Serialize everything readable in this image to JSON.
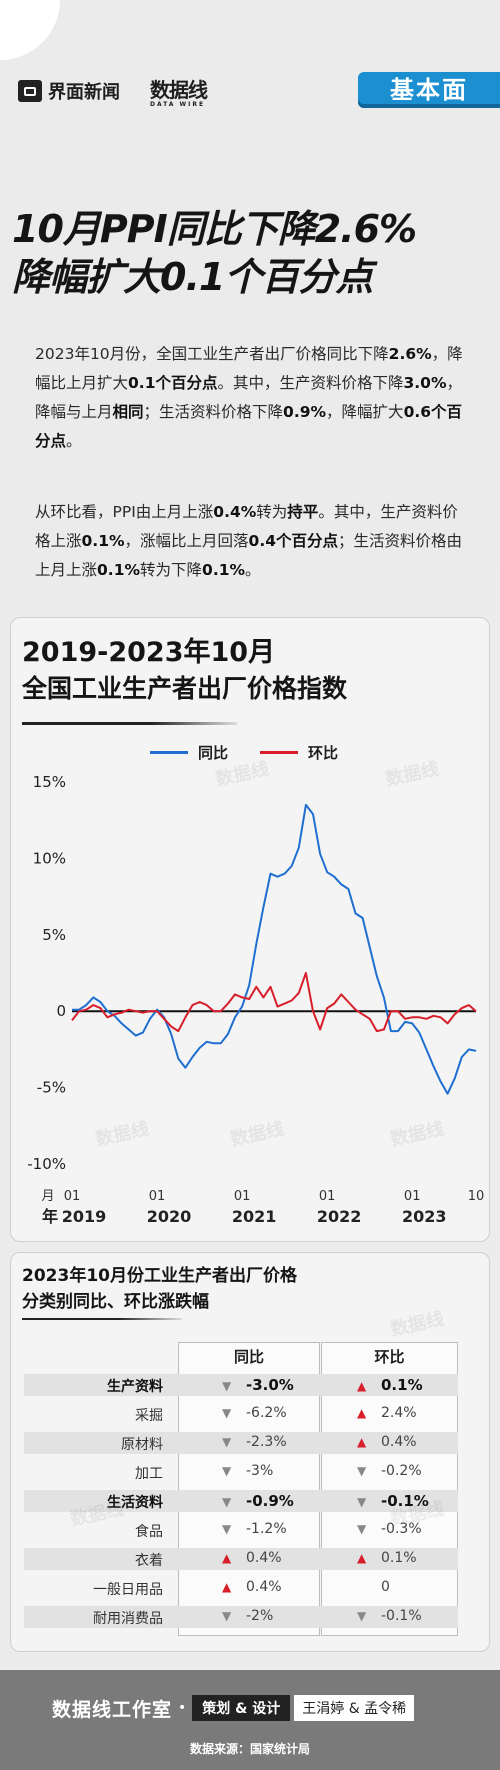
{
  "header": {
    "brand_name": "界面新闻",
    "brand2": "数据线",
    "brand2_sub": "DATA WIRE",
    "tag": "基本面"
  },
  "headline": {
    "line1": "10月PPI同比下降2.6%",
    "line2": "降幅扩大0.1个百分点"
  },
  "paragraphs": {
    "p1": [
      {
        "t": "2023年10月份，全国工业生产者出厂价格同比下降",
        "b": false
      },
      {
        "t": "2.6%",
        "b": true
      },
      {
        "t": "，降幅比上月扩大",
        "b": false
      },
      {
        "t": "0.1个百分点",
        "b": true
      },
      {
        "t": "。其中，生产资料价格下降",
        "b": false
      },
      {
        "t": "3.0%",
        "b": true
      },
      {
        "t": "，降幅与上月",
        "b": false
      },
      {
        "t": "相同",
        "b": true
      },
      {
        "t": "；生活资料价格下降",
        "b": false
      },
      {
        "t": "0.9%",
        "b": true
      },
      {
        "t": "，降幅扩大",
        "b": false
      },
      {
        "t": "0.6个百分点",
        "b": true
      },
      {
        "t": "。",
        "b": false
      }
    ],
    "p2": [
      {
        "t": "从环比看，PPI由上月上涨",
        "b": false
      },
      {
        "t": "0.4%",
        "b": true
      },
      {
        "t": "转为",
        "b": false
      },
      {
        "t": "持平",
        "b": true
      },
      {
        "t": "。其中，生产资料价格上涨",
        "b": false
      },
      {
        "t": "0.1%",
        "b": true
      },
      {
        "t": "，涨幅比上月回落",
        "b": false
      },
      {
        "t": "0.4个百分点",
        "b": true
      },
      {
        "t": "；生活资料价格由上月上涨",
        "b": false
      },
      {
        "t": "0.1%",
        "b": true
      },
      {
        "t": "转为下降",
        "b": false
      },
      {
        "t": "0.1%",
        "b": true
      },
      {
        "t": "。",
        "b": false
      }
    ]
  },
  "chart_data": {
    "type": "line",
    "title_line1": "2019-2023年10月",
    "title_line2": "全国工业生产者出厂价格指数",
    "ylim": [
      -10,
      15
    ],
    "yticks": [
      -10,
      -5,
      0,
      5,
      10,
      15
    ],
    "ytick_labels": [
      "-10%",
      "-5%",
      "0",
      "5%",
      "10%",
      "15%"
    ],
    "x_month_label": "月",
    "x_year_label": "年",
    "x_ticks": [
      {
        "month": "01",
        "year": "2019",
        "index": 0
      },
      {
        "month": "01",
        "year": "2020",
        "index": 12
      },
      {
        "month": "01",
        "year": "2021",
        "index": 24
      },
      {
        "month": "01",
        "year": "2022",
        "index": 36
      },
      {
        "month": "01",
        "year": "2023",
        "index": 48
      },
      {
        "month": "10",
        "year": "",
        "index": 57
      }
    ],
    "series": [
      {
        "name": "同比",
        "color": "#1f6fd1",
        "values": [
          0.1,
          0.1,
          0.4,
          0.9,
          0.6,
          0.0,
          -0.3,
          -0.8,
          -1.2,
          -1.6,
          -1.4,
          -0.5,
          0.1,
          -0.4,
          -1.5,
          -3.1,
          -3.7,
          -3.0,
          -2.4,
          -2.0,
          -2.1,
          -2.1,
          -1.5,
          -0.4,
          0.3,
          1.7,
          4.4,
          6.8,
          9.0,
          8.8,
          9.0,
          9.5,
          10.7,
          13.5,
          12.9,
          10.3,
          9.1,
          8.8,
          8.3,
          8.0,
          6.4,
          6.1,
          4.2,
          2.3,
          0.9,
          -1.3,
          -1.3,
          -0.7,
          -0.8,
          -1.4,
          -2.5,
          -3.6,
          -4.6,
          -5.4,
          -4.4,
          -3.0,
          -2.5,
          -2.6
        ]
      },
      {
        "name": "环比",
        "color": "#d81e2a",
        "values": [
          -0.6,
          0.0,
          0.1,
          0.4,
          0.2,
          -0.4,
          -0.2,
          -0.1,
          0.1,
          0.0,
          -0.1,
          0.0,
          0.0,
          -0.5,
          -1.0,
          -1.3,
          -0.4,
          0.4,
          0.6,
          0.4,
          0.0,
          0.0,
          0.5,
          1.1,
          0.9,
          0.8,
          1.6,
          0.9,
          1.6,
          0.3,
          0.5,
          0.7,
          1.2,
          2.5,
          0.0,
          -1.2,
          0.2,
          0.5,
          1.1,
          0.6,
          0.1,
          -0.2,
          -0.5,
          -1.3,
          -1.2,
          0.0,
          0.0,
          -0.5,
          -0.4,
          -0.4,
          -0.5,
          -0.3,
          -0.4,
          -0.8,
          -0.2,
          0.2,
          0.4,
          0.0
        ]
      }
    ]
  },
  "table": {
    "title_line1": "2023年10月份工业生产者出厂价格",
    "title_line2": "分类别同比、环比涨跌幅",
    "col1": "同比",
    "col2": "环比",
    "rows": [
      {
        "name": "生产资料",
        "yoy": "-3.0%",
        "yoy_dir": "down",
        "mom": "0.1%",
        "mom_dir": "up",
        "major": true
      },
      {
        "name": "采掘",
        "yoy": "-6.2%",
        "yoy_dir": "down",
        "mom": "2.4%",
        "mom_dir": "up",
        "major": false
      },
      {
        "name": "原材料",
        "yoy": "-2.3%",
        "yoy_dir": "down",
        "mom": "0.4%",
        "mom_dir": "up",
        "major": false
      },
      {
        "name": "加工",
        "yoy": "-3%",
        "yoy_dir": "down",
        "mom": "-0.2%",
        "mom_dir": "down",
        "major": false
      },
      {
        "name": "生活资料",
        "yoy": "-0.9%",
        "yoy_dir": "down",
        "mom": "-0.1%",
        "mom_dir": "down",
        "major": true
      },
      {
        "name": "食品",
        "yoy": "-1.2%",
        "yoy_dir": "down",
        "mom": "-0.3%",
        "mom_dir": "down",
        "major": false
      },
      {
        "name": "衣着",
        "yoy": "0.4%",
        "yoy_dir": "up",
        "mom": "0.1%",
        "mom_dir": "up",
        "major": false
      },
      {
        "name": "一般日用品",
        "yoy": "0.4%",
        "yoy_dir": "up",
        "mom": "0",
        "mom_dir": "none",
        "major": false
      },
      {
        "name": "耐用消费品",
        "yoy": "-2%",
        "yoy_dir": "down",
        "mom": "-0.1%",
        "mom_dir": "down",
        "major": false
      }
    ],
    "up_glyph": "▲",
    "down_glyph": "▼"
  },
  "footer": {
    "studio": "数据线工作室",
    "dot": "•",
    "plan_label": "策划 & 设计",
    "names": "王涓婷 & 孟令稀",
    "source": "数据来源：国家统计局"
  },
  "colors": {
    "accent_blue": "#1f6fd1",
    "accent_red": "#d81e2a",
    "tag_blue": "#1c8fd1"
  }
}
